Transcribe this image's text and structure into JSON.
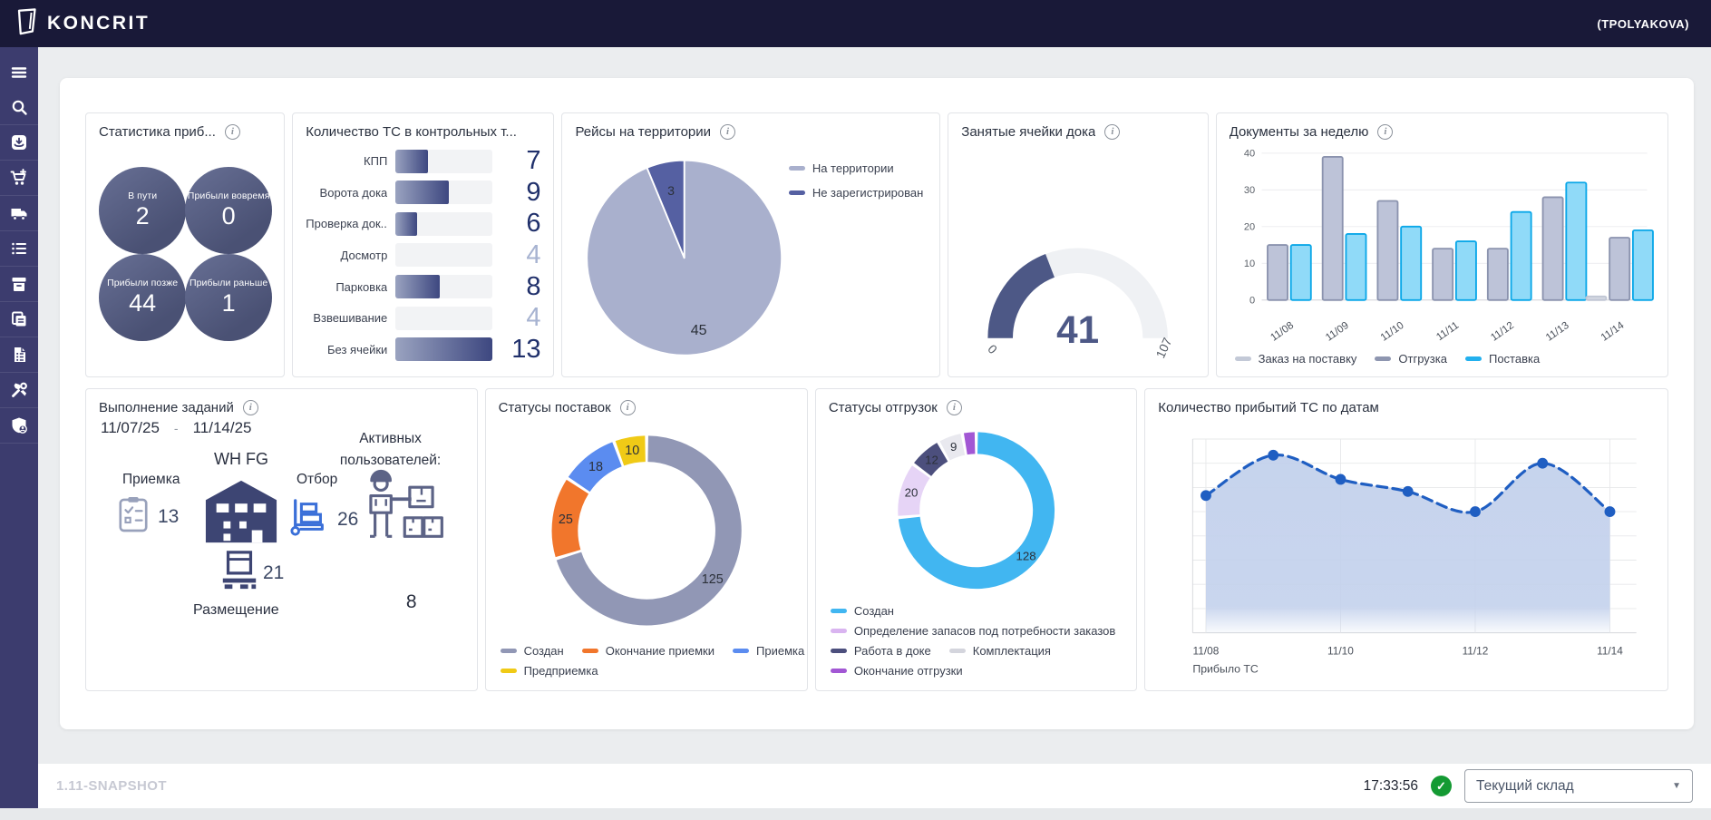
{
  "header": {
    "brand": "KONCRIT",
    "user": "(TPOLYAKOVA)"
  },
  "sidebar": {
    "icons": [
      "menu",
      "search",
      "inbox-box",
      "cart-plus",
      "truck",
      "list",
      "archive-box",
      "copy-documents",
      "file-document",
      "tools",
      "shield-user"
    ]
  },
  "cards": {
    "arrival_stats": {
      "title": "Статистика приб...",
      "circles": [
        {
          "label": "В пути",
          "value": "2"
        },
        {
          "label": "Прибыли вовремя",
          "value": "0"
        },
        {
          "label": "Прибыли позже",
          "value": "44"
        },
        {
          "label": "Прибыли раньше",
          "value": "1"
        }
      ]
    },
    "control_points": {
      "title": "Количество ТС в контрольных т...",
      "rows": [
        {
          "label": "КПП",
          "value": "7",
          "fraction": 0.33,
          "muted": false
        },
        {
          "label": "Ворота дока",
          "value": "9",
          "fraction": 0.55,
          "muted": false
        },
        {
          "label": "Проверка док...",
          "value": "6",
          "fraction": 0.22,
          "muted": false
        },
        {
          "label": "Досмотр",
          "value": "4",
          "fraction": 0,
          "muted": true
        },
        {
          "label": "Парковка",
          "value": "8",
          "fraction": 0.45,
          "muted": false
        },
        {
          "label": "Взвешивание",
          "value": "4",
          "fraction": 0,
          "muted": true
        },
        {
          "label": "Без ячейки",
          "value": "13",
          "fraction": 1,
          "muted": false
        }
      ]
    },
    "trips": {
      "title": "Рейсы на территории",
      "chart_data": {
        "type": "pie",
        "slices": [
          {
            "label": "На территории",
            "value": 45,
            "color": "#a9b0cd"
          },
          {
            "label": "Не зарегистрирован",
            "value": 3,
            "color": "#5560a2"
          }
        ],
        "legend_rows": [
          [
            0
          ],
          [
            1
          ]
        ],
        "legend_position": "top-right"
      }
    },
    "dock_cells": {
      "title": "Занятые ячейки дока",
      "chart_data": {
        "type": "gauge",
        "min": 0,
        "max": 107,
        "value": 41,
        "fill_color": "#4d5886",
        "track_color": "#eff1f4"
      }
    },
    "documents": {
      "title": "Документы за неделю",
      "chart_data": {
        "type": "bar",
        "categories": [
          "11/08",
          "11/09",
          "11/10",
          "11/11",
          "11/12",
          "11/13",
          "11/14"
        ],
        "series": [
          {
            "name": "Заказ на поставку",
            "fill": "#d2d6e1",
            "stroke": "#c0c6d4",
            "legend_color": "#c3c9d7",
            "values": [
              0,
              0,
              0,
              0,
              0,
              0,
              1
            ]
          },
          {
            "name": "Отгрузка",
            "fill": "#bdc3d8",
            "stroke": "#8b93ae",
            "legend_color": "#8e96b0",
            "values": [
              15,
              39,
              27,
              14,
              14,
              28,
              17
            ]
          },
          {
            "name": "Поставка",
            "fill": "#90daf8",
            "stroke": "#0aa7e8",
            "legend_color": "#22b0ee",
            "values": [
              15,
              18,
              20,
              16,
              24,
              32,
              19
            ]
          }
        ],
        "ylim": [
          0,
          40
        ],
        "yticks": [
          0,
          10,
          20,
          30,
          40
        ],
        "legend_rows": [
          [
            0,
            1,
            2
          ]
        ]
      }
    },
    "tasks": {
      "title": "Выполнение заданий",
      "date_from": "11/07/25",
      "date_sep": "-",
      "date_to": "11/14/25",
      "warehouse": "WH FG",
      "reception_label": "Приемка",
      "reception_value": "13",
      "picking_label": "Отбор",
      "picking_value": "26",
      "placement_label": "Размещение",
      "placement_value": "21",
      "active_users_label": "Активных пользователей:",
      "active_users_value": "8"
    },
    "delivery_statuses": {
      "title": "Статусы поставок",
      "chart_data": {
        "type": "donut",
        "slices": [
          {
            "label": "Создан",
            "value": 125,
            "color": "#9197b5",
            "show_label": true
          },
          {
            "label": "Окончание приемки",
            "value": 25,
            "color": "#f1762c",
            "show_label": true
          },
          {
            "label": "Приемка",
            "value": 18,
            "color": "#5b8cf0",
            "show_label": true
          },
          {
            "label": "Предприемка",
            "value": 10,
            "color": "#f0ca16",
            "show_label": true
          }
        ],
        "legend_rows": [
          [
            0,
            1,
            2
          ],
          [
            3
          ]
        ]
      }
    },
    "shipment_statuses": {
      "title": "Статусы отгрузок",
      "chart_data": {
        "type": "donut",
        "slices": [
          {
            "label": "Создан",
            "value": 128,
            "color": "#41b6f1",
            "show_label": true
          },
          {
            "label": "Определение запасов под потребности заказов",
            "value": 20,
            "color": "#e6d4f6",
            "legend_color": "#d9b4f0",
            "show_label": true
          },
          {
            "label": "Работа в доке",
            "value": 12,
            "color": "#4c4f7d",
            "show_label": true
          },
          {
            "label": "Комплектация",
            "value": 9,
            "color": "#e9e9ef",
            "legend_color": "#d4d5dd",
            "show_label": true
          },
          {
            "label": "Окончание отгрузки",
            "value": 5,
            "color": "#a257d4",
            "show_label": false
          }
        ],
        "legend_rows": [
          [
            0
          ],
          [
            1
          ],
          [
            2,
            3
          ],
          [
            4
          ]
        ]
      }
    },
    "arrivals": {
      "title": "Количество прибытий ТС по датам",
      "chart_data": {
        "type": "area",
        "x": [
          "11/08",
          "11/09",
          "11/10",
          "11/11",
          "11/12",
          "11/13",
          "11/14"
        ],
        "values": [
          17,
          22,
          19,
          17.5,
          15,
          21,
          15
        ],
        "x_tick_indices": [
          0,
          2,
          4,
          6
        ],
        "ylim": [
          0,
          24
        ],
        "caption": "Прибыло ТС",
        "line_color": "#1f5ec2",
        "fill_color": "#c3d1ec"
      }
    }
  },
  "footer": {
    "version": "1.11-SNAPSHOT",
    "time": "17:33:56",
    "warehouse_select": "Текущий склад"
  }
}
